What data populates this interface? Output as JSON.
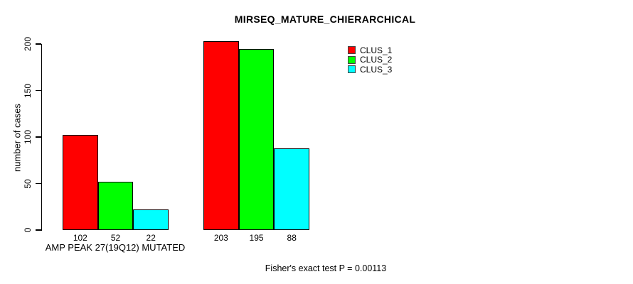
{
  "chart_data": {
    "type": "bar",
    "title": "MIRSEQ_MATURE_CHIERARCHICAL",
    "ylabel": "number of cases",
    "xlabel": "",
    "ylim": [
      0,
      200
    ],
    "yticks": [
      0,
      50,
      100,
      150,
      200
    ],
    "grid": false,
    "legend_position": "top-right",
    "series": [
      {
        "name": "CLUS_1",
        "color": "#FF0000"
      },
      {
        "name": "CLUS_2",
        "color": "#00FF00"
      },
      {
        "name": "CLUS_3",
        "color": "#00FFFF"
      }
    ],
    "groups": [
      {
        "label": "AMP PEAK 27(19Q12) MUTATED",
        "values": [
          102,
          52,
          22
        ]
      },
      {
        "label": "",
        "values": [
          203,
          195,
          88
        ]
      }
    ],
    "annotation": "Fisher's exact test P = 0.00113"
  },
  "colors": {
    "background": "#FFFFFF",
    "axis": "#000000",
    "text": "#000000"
  }
}
